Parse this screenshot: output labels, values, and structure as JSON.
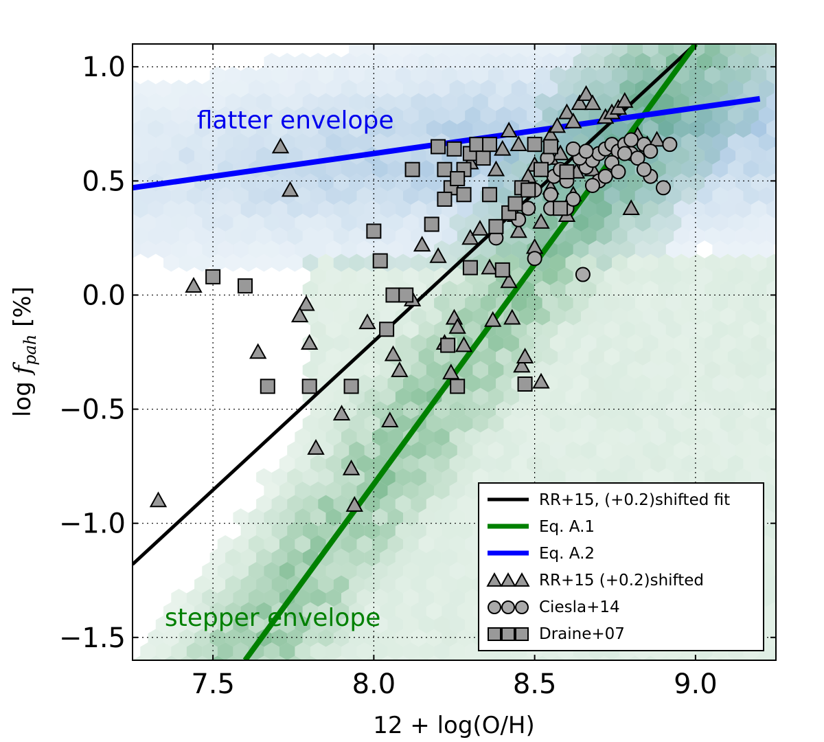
{
  "chart_data": {
    "type": "scatter",
    "xlabel": "12 + log(O/H)",
    "ylabel_prefix": "log ",
    "ylabel_var": "f",
    "ylabel_sub": "pah",
    "ylabel_suffix": " [%]",
    "xlim": [
      7.25,
      9.25
    ],
    "ylim": [
      -1.6,
      1.1
    ],
    "xticks": [
      7.5,
      8.0,
      8.5,
      9.0
    ],
    "xtick_labels": [
      "7.5",
      "8.0",
      "8.5",
      "9.0"
    ],
    "yticks": [
      1.0,
      0.5,
      0.0,
      -0.5,
      -1.0,
      -1.5
    ],
    "ytick_labels": [
      "1.0",
      "0.5",
      "0.0",
      "−0.5",
      "−1.0",
      "−1.5"
    ],
    "grid": true,
    "legend_position": "bottom-right",
    "annotations": [
      {
        "text": "flatter envelope",
        "x": 7.45,
        "y": 0.73,
        "color": "#0000ee"
      },
      {
        "text": "stepper  envelope",
        "x": 7.35,
        "y": -1.45,
        "color": "#008000"
      }
    ],
    "lines": [
      {
        "name": "RR+15, (+0.2)shifted fit",
        "color": "#000000",
        "x": [
          7.25,
          9.0
        ],
        "y": [
          -1.18,
          1.1
        ]
      },
      {
        "name": "Eq. A.1",
        "color": "#008000",
        "x": [
          7.6,
          9.0
        ],
        "y": [
          -1.6,
          1.1
        ]
      },
      {
        "name": "Eq. A.2",
        "color": "#0000ff",
        "x": [
          7.25,
          9.2
        ],
        "y": [
          0.47,
          0.86
        ]
      }
    ],
    "density": [
      {
        "name": "blue-hexbin",
        "color": "#2171b5"
      },
      {
        "name": "green-hexbin",
        "color": "#238b45"
      }
    ],
    "series": [
      {
        "name": "RR+15 (+0.2)shifted",
        "marker": "triangle",
        "color": "#999999",
        "points": [
          [
            7.33,
            -0.9
          ],
          [
            7.44,
            0.04
          ],
          [
            7.71,
            0.65
          ],
          [
            7.74,
            0.46
          ],
          [
            7.64,
            -0.25
          ],
          [
            7.79,
            -0.04
          ],
          [
            7.77,
            -0.09
          ],
          [
            7.8,
            -0.21
          ],
          [
            7.82,
            -0.67
          ],
          [
            7.9,
            -0.52
          ],
          [
            7.93,
            -0.76
          ],
          [
            7.94,
            -0.92
          ],
          [
            7.98,
            -0.12
          ],
          [
            8.05,
            -0.55
          ],
          [
            8.06,
            -0.26
          ],
          [
            8.08,
            -0.33
          ],
          [
            8.12,
            -0.02
          ],
          [
            8.15,
            0.22
          ],
          [
            8.2,
            0.17
          ],
          [
            8.22,
            -0.21
          ],
          [
            8.24,
            -0.34
          ],
          [
            8.25,
            -0.1
          ],
          [
            8.26,
            -0.14
          ],
          [
            8.28,
            -0.22
          ],
          [
            8.3,
            0.25
          ],
          [
            8.33,
            0.29
          ],
          [
            8.36,
            0.12
          ],
          [
            8.37,
            -0.11
          ],
          [
            8.42,
            0.06
          ],
          [
            8.43,
            -0.1
          ],
          [
            8.44,
            0.35
          ],
          [
            8.46,
            -0.31
          ],
          [
            8.47,
            -0.27
          ],
          [
            8.5,
            0.21
          ],
          [
            8.52,
            0.32
          ],
          [
            8.55,
            0.7
          ],
          [
            8.57,
            0.74
          ],
          [
            8.6,
            0.8
          ],
          [
            8.62,
            0.76
          ],
          [
            8.64,
            0.84
          ],
          [
            8.66,
            0.88
          ],
          [
            8.68,
            0.84
          ],
          [
            8.72,
            0.78
          ],
          [
            8.74,
            0.8
          ],
          [
            8.76,
            0.82
          ],
          [
            8.78,
            0.85
          ],
          [
            8.52,
            -0.38
          ],
          [
            8.6,
            0.35
          ],
          [
            8.4,
            0.64
          ],
          [
            8.42,
            0.72
          ],
          [
            8.45,
            0.66
          ],
          [
            8.5,
            0.57
          ],
          [
            8.55,
            0.6
          ],
          [
            8.58,
            0.62
          ],
          [
            8.63,
            0.54
          ],
          [
            8.45,
            0.28
          ],
          [
            8.38,
            0.55
          ],
          [
            8.3,
            0.58
          ],
          [
            8.82,
            0.7
          ],
          [
            8.85,
            0.66
          ],
          [
            8.88,
            0.68
          ],
          [
            8.8,
            0.38
          ],
          [
            8.62,
            0.44
          ],
          [
            8.55,
            0.47
          ],
          [
            8.48,
            0.52
          ],
          [
            8.68,
            0.55
          ]
        ]
      },
      {
        "name": "Ciesla+14",
        "marker": "circle",
        "color": "#aaaaaa",
        "points": [
          [
            8.38,
            0.25
          ],
          [
            8.45,
            0.33
          ],
          [
            8.5,
            0.16
          ],
          [
            8.55,
            0.44
          ],
          [
            8.6,
            0.38
          ],
          [
            8.62,
            0.42
          ],
          [
            8.65,
            0.09
          ],
          [
            8.66,
            0.56
          ],
          [
            8.68,
            0.59
          ],
          [
            8.7,
            0.62
          ],
          [
            8.72,
            0.64
          ],
          [
            8.74,
            0.66
          ],
          [
            8.76,
            0.63
          ],
          [
            8.78,
            0.66
          ],
          [
            8.8,
            0.62
          ],
          [
            8.82,
            0.6
          ],
          [
            8.84,
            0.66
          ],
          [
            8.86,
            0.52
          ],
          [
            8.9,
            0.47
          ],
          [
            8.92,
            0.66
          ],
          [
            8.56,
            0.52
          ],
          [
            8.58,
            0.55
          ],
          [
            8.6,
            0.5
          ],
          [
            8.64,
            0.6
          ],
          [
            8.7,
            0.5
          ],
          [
            8.72,
            0.52
          ],
          [
            8.74,
            0.58
          ],
          [
            8.76,
            0.54
          ],
          [
            8.78,
            0.62
          ],
          [
            8.5,
            0.46
          ],
          [
            8.52,
            0.55
          ],
          [
            8.54,
            0.6
          ],
          [
            8.62,
            0.64
          ],
          [
            8.66,
            0.63
          ],
          [
            8.8,
            0.68
          ],
          [
            8.84,
            0.55
          ],
          [
            8.86,
            0.63
          ],
          [
            8.48,
            0.38
          ],
          [
            8.55,
            0.38
          ],
          [
            8.68,
            0.48
          ]
        ]
      },
      {
        "name": "Draine+07",
        "marker": "square",
        "color": "#999999",
        "points": [
          [
            7.5,
            0.08
          ],
          [
            7.6,
            0.04
          ],
          [
            7.67,
            -0.4
          ],
          [
            7.8,
            -0.4
          ],
          [
            7.93,
            -0.4
          ],
          [
            8.0,
            0.28
          ],
          [
            8.02,
            0.15
          ],
          [
            8.04,
            -0.15
          ],
          [
            8.06,
            0.0
          ],
          [
            8.1,
            0.0
          ],
          [
            8.12,
            0.55
          ],
          [
            8.18,
            0.31
          ],
          [
            8.2,
            0.65
          ],
          [
            8.22,
            0.55
          ],
          [
            8.25,
            0.64
          ],
          [
            8.23,
            -0.22
          ],
          [
            8.26,
            -0.4
          ],
          [
            8.28,
            0.55
          ],
          [
            8.3,
            0.62
          ],
          [
            8.32,
            0.66
          ],
          [
            8.34,
            0.6
          ],
          [
            8.36,
            0.44
          ],
          [
            8.38,
            0.3
          ],
          [
            8.4,
            0.11
          ],
          [
            8.42,
            0.36
          ],
          [
            8.44,
            0.4
          ],
          [
            8.46,
            0.47
          ],
          [
            8.48,
            0.46
          ],
          [
            8.5,
            0.66
          ],
          [
            8.52,
            0.55
          ],
          [
            8.55,
            0.65
          ],
          [
            8.58,
            0.38
          ],
          [
            8.6,
            0.54
          ],
          [
            8.3,
            0.12
          ],
          [
            8.47,
            -0.39
          ],
          [
            8.24,
            0.47
          ],
          [
            8.26,
            0.51
          ],
          [
            8.22,
            0.42
          ],
          [
            8.28,
            0.44
          ],
          [
            8.36,
            0.66
          ]
        ]
      }
    ],
    "legend": [
      {
        "label": "RR+15, (+0.2)shifted fit",
        "kind": "line",
        "color": "#000000"
      },
      {
        "label": "Eq. A.1",
        "kind": "line",
        "color": "#008000"
      },
      {
        "label": "Eq. A.2",
        "kind": "line",
        "color": "#0000ff"
      },
      {
        "label": "RR+15 (+0.2)shifted",
        "kind": "triangle",
        "color": "#999999"
      },
      {
        "label": "Ciesla+14",
        "kind": "circle",
        "color": "#aaaaaa"
      },
      {
        "label": "Draine+07",
        "kind": "square",
        "color": "#999999"
      }
    ]
  }
}
